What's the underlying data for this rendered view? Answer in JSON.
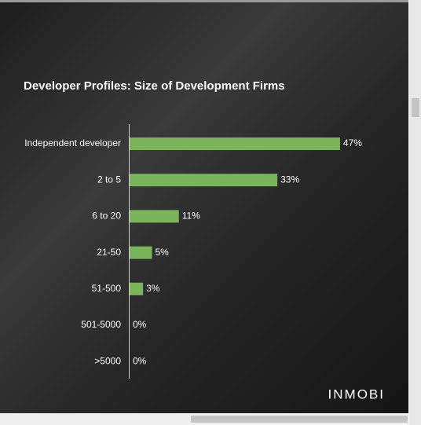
{
  "chart_data": {
    "type": "bar",
    "orientation": "horizontal",
    "title": "Developer Profiles:  Size of Development Firms",
    "categories": [
      "Independent developer",
      "2 to 5",
      "6 to 20",
      "21-50",
      "51-500",
      "501-5000",
      ">5000"
    ],
    "values": [
      47,
      33,
      11,
      5,
      3,
      0,
      0
    ],
    "value_labels": [
      "47%",
      "33%",
      "11%",
      "5%",
      "3%",
      "0%",
      "0%"
    ],
    "color": "#7ab55c",
    "logo": "INMOBI"
  }
}
